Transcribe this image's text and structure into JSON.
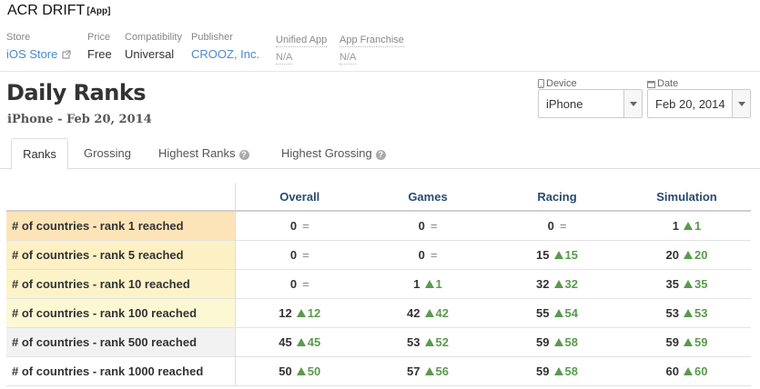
{
  "app": {
    "title": "ACR DRIFT",
    "tag": "[App]"
  },
  "meta": {
    "store_label": "Store",
    "store_value": "iOS Store",
    "price_label": "Price",
    "price_value": "Free",
    "compat_label": "Compatibility",
    "compat_value": "Universal",
    "publisher_label": "Publisher",
    "publisher_value": "CROOZ, Inc.",
    "unified_label": "Unified App",
    "unified_value": "N/A",
    "franchise_label": "App Franchise",
    "franchise_value": "N/A"
  },
  "page": {
    "title": "Daily Ranks",
    "subtitle": "iPhone - Feb 20, 2014"
  },
  "controls": {
    "device_label": "Device",
    "device_value": "iPhone",
    "date_label": "Date",
    "date_value": "Feb 20, 2014"
  },
  "tabs": [
    {
      "label": "Ranks",
      "active": true
    },
    {
      "label": "Grossing"
    },
    {
      "label": "Highest Ranks"
    },
    {
      "label": "Highest Grossing"
    }
  ],
  "table": {
    "columns": [
      "Overall",
      "Games",
      "Racing",
      "Simulation"
    ],
    "rows": [
      {
        "label": "# of countries - rank 1 reached",
        "bg": "#fde4b8",
        "cells": [
          {
            "v": "0",
            "d": "="
          },
          {
            "v": "0",
            "d": "="
          },
          {
            "v": "0",
            "d": "="
          },
          {
            "v": "1",
            "d": "1"
          }
        ]
      },
      {
        "label": "# of countries - rank 5 reached",
        "bg": "#fdf0c4",
        "cells": [
          {
            "v": "0",
            "d": "="
          },
          {
            "v": "0",
            "d": "="
          },
          {
            "v": "15",
            "d": "15"
          },
          {
            "v": "20",
            "d": "20"
          }
        ]
      },
      {
        "label": "# of countries - rank 10 reached",
        "bg": "#fdf3c8",
        "cells": [
          {
            "v": "0",
            "d": "="
          },
          {
            "v": "1",
            "d": "1"
          },
          {
            "v": "32",
            "d": "32"
          },
          {
            "v": "35",
            "d": "35"
          }
        ]
      },
      {
        "label": "# of countries - rank 100 reached",
        "bg": "#fdf8d4",
        "cells": [
          {
            "v": "12",
            "d": "12"
          },
          {
            "v": "42",
            "d": "42"
          },
          {
            "v": "55",
            "d": "54"
          },
          {
            "v": "53",
            "d": "53"
          }
        ]
      },
      {
        "label": "# of countries - rank 500 reached",
        "bg": "#f2f2f2",
        "cells": [
          {
            "v": "45",
            "d": "45"
          },
          {
            "v": "53",
            "d": "52"
          },
          {
            "v": "59",
            "d": "58"
          },
          {
            "v": "59",
            "d": "59"
          }
        ]
      },
      {
        "label": "# of countries - rank 1000 reached",
        "bg": "#ffffff",
        "cells": [
          {
            "v": "50",
            "d": "50"
          },
          {
            "v": "57",
            "d": "56"
          },
          {
            "v": "59",
            "d": "58"
          },
          {
            "v": "60",
            "d": "60"
          }
        ]
      }
    ]
  },
  "colors": {
    "link": "#4a8ac8",
    "up": "#5a9a4e",
    "header": "#2a4a6e"
  }
}
